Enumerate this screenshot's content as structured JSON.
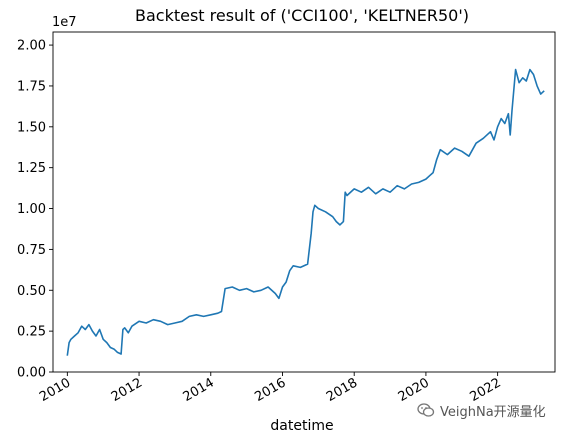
{
  "chart_data": {
    "type": "line",
    "title": "Backtest result of ('CCI100', 'KELTNER50')",
    "xlabel": "datetime",
    "ylabel": "",
    "y_offset_text": "1e7",
    "xlim": [
      2009.6,
      2023.6
    ],
    "ylim": [
      0,
      2.08
    ],
    "x_ticks": [
      2010,
      2012,
      2014,
      2016,
      2018,
      2020,
      2022
    ],
    "x_tick_labels": [
      "2010",
      "2012",
      "2014",
      "2016",
      "2018",
      "2020",
      "2022"
    ],
    "y_ticks": [
      0.0,
      0.25,
      0.5,
      0.75,
      1.0,
      1.25,
      1.5,
      1.75,
      2.0
    ],
    "y_tick_labels": [
      "0.00",
      "0.25",
      "0.50",
      "0.75",
      "1.00",
      "1.25",
      "1.50",
      "1.75",
      "2.00"
    ],
    "grid": false,
    "series": [
      {
        "color": "#1f77b4",
        "x": [
          2010.0,
          2010.05,
          2010.1,
          2010.2,
          2010.3,
          2010.4,
          2010.5,
          2010.6,
          2010.7,
          2010.8,
          2010.9,
          2011.0,
          2011.1,
          2011.2,
          2011.3,
          2011.4,
          2011.5,
          2011.55,
          2011.6,
          2011.7,
          2011.8,
          2012.0,
          2012.2,
          2012.4,
          2012.6,
          2012.8,
          2013.0,
          2013.2,
          2013.4,
          2013.6,
          2013.8,
          2014.0,
          2014.2,
          2014.3,
          2014.4,
          2014.6,
          2014.8,
          2015.0,
          2015.2,
          2015.4,
          2015.6,
          2015.8,
          2015.9,
          2016.0,
          2016.1,
          2016.2,
          2016.3,
          2016.5,
          2016.7,
          2016.8,
          2016.85,
          2016.9,
          2017.0,
          2017.2,
          2017.4,
          2017.5,
          2017.6,
          2017.7,
          2017.75,
          2017.8,
          2018.0,
          2018.2,
          2018.4,
          2018.6,
          2018.8,
          2019.0,
          2019.2,
          2019.4,
          2019.6,
          2019.8,
          2020.0,
          2020.1,
          2020.2,
          2020.3,
          2020.4,
          2020.6,
          2020.8,
          2021.0,
          2021.2,
          2021.4,
          2021.6,
          2021.8,
          2021.9,
          2022.0,
          2022.1,
          2022.2,
          2022.3,
          2022.35,
          2022.4,
          2022.5,
          2022.6,
          2022.7,
          2022.8,
          2022.9,
          2023.0,
          2023.1,
          2023.2,
          2023.3
        ],
        "y": [
          0.1,
          0.18,
          0.2,
          0.22,
          0.24,
          0.28,
          0.26,
          0.29,
          0.25,
          0.22,
          0.26,
          0.2,
          0.18,
          0.15,
          0.14,
          0.12,
          0.11,
          0.26,
          0.27,
          0.24,
          0.28,
          0.31,
          0.3,
          0.32,
          0.31,
          0.29,
          0.3,
          0.31,
          0.34,
          0.35,
          0.34,
          0.35,
          0.36,
          0.37,
          0.51,
          0.52,
          0.5,
          0.51,
          0.49,
          0.5,
          0.52,
          0.48,
          0.45,
          0.52,
          0.55,
          0.62,
          0.65,
          0.64,
          0.66,
          0.85,
          0.98,
          1.02,
          1.0,
          0.98,
          0.95,
          0.92,
          0.9,
          0.92,
          1.1,
          1.08,
          1.12,
          1.1,
          1.13,
          1.09,
          1.12,
          1.1,
          1.14,
          1.12,
          1.15,
          1.16,
          1.18,
          1.2,
          1.22,
          1.3,
          1.36,
          1.33,
          1.37,
          1.35,
          1.32,
          1.4,
          1.43,
          1.47,
          1.42,
          1.5,
          1.55,
          1.52,
          1.58,
          1.45,
          1.6,
          1.85,
          1.77,
          1.8,
          1.78,
          1.85,
          1.82,
          1.75,
          1.7,
          1.72
        ]
      }
    ]
  },
  "watermark": {
    "icon": "wechat-icon",
    "text": "VeighNa开源量化"
  }
}
